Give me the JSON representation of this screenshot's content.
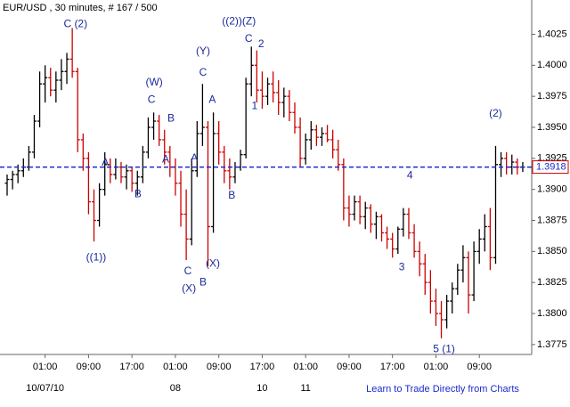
{
  "chart_data": {
    "type": "ohlc",
    "title": "EUR/USD , 30 minutes, # 167 / 500",
    "footer": "Learn to Trade Directly from Charts",
    "up_color": "#000000",
    "down_color": "#cc0000",
    "annotation_color": "#1a2a9c",
    "current_price": 1.3918,
    "current_price_color": "#1a2acc",
    "xlim": [
      0,
      95.5
    ],
    "xticks": [
      {
        "value": 7,
        "label": "01:00"
      },
      {
        "value": 15,
        "label": "09:00"
      },
      {
        "value": 23,
        "label": "17:00"
      },
      {
        "value": 31,
        "label": "01:00"
      },
      {
        "value": 39,
        "label": "09:00"
      },
      {
        "value": 47,
        "label": "17:00"
      },
      {
        "value": 55,
        "label": "01:00"
      },
      {
        "value": 63,
        "label": "09:00"
      },
      {
        "value": 71,
        "label": "17:00"
      },
      {
        "value": 79,
        "label": "01:00"
      },
      {
        "value": 87,
        "label": "09:00"
      }
    ],
    "date_labels": [
      {
        "value": 7,
        "label": "10/07/10"
      },
      {
        "value": 31,
        "label": "08"
      },
      {
        "value": 47,
        "label": "10"
      },
      {
        "value": 55,
        "label": "11"
      }
    ],
    "ylim": [
      1.3767,
      1.4044
    ],
    "yticks": [
      1.4025,
      {
        "value": 1.4,
        "label": "1.4000"
      },
      1.3975,
      {
        "value": 1.395,
        "label": "1.3950"
      },
      1.3925,
      {
        "value": 1.39,
        "label": "1.3900"
      },
      1.3875,
      {
        "value": 1.385,
        "label": "1.3850"
      },
      1.3825,
      {
        "value": 1.38,
        "label": "1.3800"
      },
      1.3775
    ],
    "open": [
      1.3905,
      1.3908,
      1.3912,
      1.3915,
      1.3918,
      1.393,
      1.3955,
      1.3985,
      1.399,
      1.398,
      1.3988,
      1.3995,
      1.4005,
      1.3995,
      1.394,
      1.3925,
      1.389,
      1.3875,
      1.39,
      1.392,
      1.3912,
      1.3918,
      1.391,
      1.3915,
      1.3905,
      1.391,
      1.393,
      1.395,
      1.3955,
      1.394,
      1.393,
      1.3918,
      1.3905,
      1.388,
      1.386,
      1.3915,
      1.3945,
      1.395,
      1.387,
      1.3945,
      1.393,
      1.3915,
      1.391,
      1.3918,
      1.3928,
      1.3985,
      1.4,
      1.398,
      1.3975,
      1.3985,
      1.3978,
      1.397,
      1.3975,
      1.3962,
      1.395,
      1.3925,
      1.394,
      1.3948,
      1.3942,
      1.3945,
      1.394,
      1.3932,
      1.392,
      1.3885,
      1.388,
      1.389,
      1.3878,
      1.3885,
      1.3872,
      1.3878,
      1.3865,
      1.386,
      1.3852,
      1.3868,
      1.388,
      1.3865,
      1.385,
      1.384,
      1.3825,
      1.381,
      1.38,
      1.3795,
      1.381,
      1.382,
      1.3835,
      1.3845,
      1.3815,
      1.385,
      1.386,
      1.387,
      1.3845,
      1.392,
      1.3925,
      1.3918,
      1.3922,
      1.3918
    ],
    "high": [
      1.3912,
      1.3915,
      1.392,
      1.3925,
      1.3935,
      1.396,
      1.3995,
      1.4,
      1.3998,
      1.3995,
      1.4005,
      1.401,
      1.403,
      1.3998,
      1.3945,
      1.393,
      1.39,
      1.3905,
      1.393,
      1.3925,
      1.3925,
      1.3922,
      1.392,
      1.3918,
      1.3915,
      1.3935,
      1.3958,
      1.3962,
      1.396,
      1.3948,
      1.3935,
      1.3925,
      1.3915,
      1.39,
      1.3925,
      1.3955,
      1.3985,
      1.3955,
      1.3962,
      1.3955,
      1.3935,
      1.3925,
      1.3922,
      1.3932,
      1.399,
      1.4015,
      1.4012,
      1.3995,
      1.399,
      1.3995,
      1.3988,
      1.3982,
      1.398,
      1.397,
      1.3958,
      1.3945,
      1.3955,
      1.3952,
      1.395,
      1.3952,
      1.3948,
      1.394,
      1.3925,
      1.3895,
      1.3895,
      1.3895,
      1.389,
      1.3888,
      1.3882,
      1.388,
      1.387,
      1.3865,
      1.387,
      1.3885,
      1.3885,
      1.3872,
      1.3858,
      1.3848,
      1.3835,
      1.382,
      1.381,
      1.3815,
      1.3825,
      1.384,
      1.3855,
      1.385,
      1.3858,
      1.3868,
      1.388,
      1.3885,
      1.3935,
      1.393,
      1.393,
      1.3928,
      1.3925,
      1.3922
    ],
    "low": [
      1.3895,
      1.39,
      1.3905,
      1.391,
      1.3915,
      1.3925,
      1.395,
      1.397,
      1.3975,
      1.397,
      1.398,
      1.3985,
      1.399,
      1.393,
      1.3915,
      1.388,
      1.3858,
      1.387,
      1.3895,
      1.3905,
      1.3908,
      1.3905,
      1.39,
      1.3898,
      1.3895,
      1.3905,
      1.3925,
      1.394,
      1.3935,
      1.392,
      1.391,
      1.3895,
      1.387,
      1.3843,
      1.3855,
      1.391,
      1.3935,
      1.3838,
      1.3865,
      1.392,
      1.3905,
      1.39,
      1.3905,
      1.3915,
      1.3925,
      1.3975,
      1.397,
      1.3965,
      1.3968,
      1.397,
      1.396,
      1.3958,
      1.3955,
      1.3945,
      1.3918,
      1.392,
      1.3932,
      1.3935,
      1.3935,
      1.3938,
      1.3925,
      1.3915,
      1.3875,
      1.387,
      1.3875,
      1.3872,
      1.3868,
      1.3865,
      1.386,
      1.3858,
      1.3852,
      1.3845,
      1.3848,
      1.3862,
      1.386,
      1.3845,
      1.383,
      1.3815,
      1.38,
      1.379,
      1.378,
      1.3788,
      1.38,
      1.3815,
      1.3825,
      1.38,
      1.381,
      1.384,
      1.385,
      1.3835,
      1.384,
      1.391,
      1.3912,
      1.3912,
      1.3912,
      1.3914
    ],
    "close": [
      1.3908,
      1.3912,
      1.3915,
      1.3918,
      1.393,
      1.3955,
      1.3985,
      1.399,
      1.398,
      1.3988,
      1.3995,
      1.4005,
      1.3995,
      1.394,
      1.3925,
      1.389,
      1.3875,
      1.39,
      1.392,
      1.3912,
      1.3918,
      1.391,
      1.3915,
      1.3905,
      1.391,
      1.393,
      1.395,
      1.3955,
      1.394,
      1.393,
      1.3918,
      1.3905,
      1.388,
      1.386,
      1.3915,
      1.3945,
      1.395,
      1.387,
      1.3945,
      1.393,
      1.3915,
      1.391,
      1.3918,
      1.3928,
      1.3985,
      1.4,
      1.398,
      1.3975,
      1.3985,
      1.3978,
      1.397,
      1.3975,
      1.3962,
      1.395,
      1.3925,
      1.394,
      1.3948,
      1.3942,
      1.3945,
      1.394,
      1.3932,
      1.392,
      1.3885,
      1.388,
      1.389,
      1.3878,
      1.3885,
      1.3872,
      1.3878,
      1.3865,
      1.386,
      1.3852,
      1.3868,
      1.388,
      1.3865,
      1.385,
      1.384,
      1.3825,
      1.381,
      1.38,
      1.3795,
      1.381,
      1.382,
      1.3835,
      1.3845,
      1.3815,
      1.385,
      1.386,
      1.387,
      1.3845,
      1.392,
      1.3925,
      1.3918,
      1.3922,
      1.3918,
      1.3918
    ],
    "annotations": [
      {
        "text": "C (2)",
        "x": 12.6,
        "y": 1.4033
      },
      {
        "text": "((1))",
        "x": 16.4,
        "y": 1.3845
      },
      {
        "text": "A",
        "x": 18.1,
        "y": 1.39215
      },
      {
        "text": "B",
        "x": 24.1,
        "y": 1.3896
      },
      {
        "text": "(W)",
        "x": 27.1,
        "y": 1.3986
      },
      {
        "text": "C",
        "x": 26.6,
        "y": 1.3972
      },
      {
        "text": "B",
        "x": 30.2,
        "y": 1.3957
      },
      {
        "text": "A",
        "x": 29.2,
        "y": 1.3924
      },
      {
        "text": "A",
        "x": 34.5,
        "y": 1.3925
      },
      {
        "text": "C",
        "x": 33.3,
        "y": 1.3834
      },
      {
        "text": "(X)",
        "x": 33.5,
        "y": 1.382
      },
      {
        "text": "B",
        "x": 36.1,
        "y": 1.3825
      },
      {
        "text": "(X)",
        "x": 37.9,
        "y": 1.384
      },
      {
        "text": "(Y)",
        "x": 36.1,
        "y": 1.4011
      },
      {
        "text": "C",
        "x": 36.1,
        "y": 1.3994
      },
      {
        "text": "A",
        "x": 37.8,
        "y": 1.3972
      },
      {
        "text": "B",
        "x": 41.4,
        "y": 1.3895
      },
      {
        "text": "((2))(Z)",
        "x": 42.7,
        "y": 1.4035
      },
      {
        "text": "C",
        "x": 44.5,
        "y": 1.4021
      },
      {
        "text": "2",
        "x": 46.8,
        "y": 1.4017
      },
      {
        "text": "1",
        "x": 45.6,
        "y": 1.3967
      },
      {
        "text": "4",
        "x": 74.2,
        "y": 1.3911
      },
      {
        "text": "3",
        "x": 72.7,
        "y": 1.3837
      },
      {
        "text": "5 (1)",
        "x": 80.5,
        "y": 1.3771
      },
      {
        "text": "(2)",
        "x": 90,
        "y": 1.3961
      }
    ]
  }
}
